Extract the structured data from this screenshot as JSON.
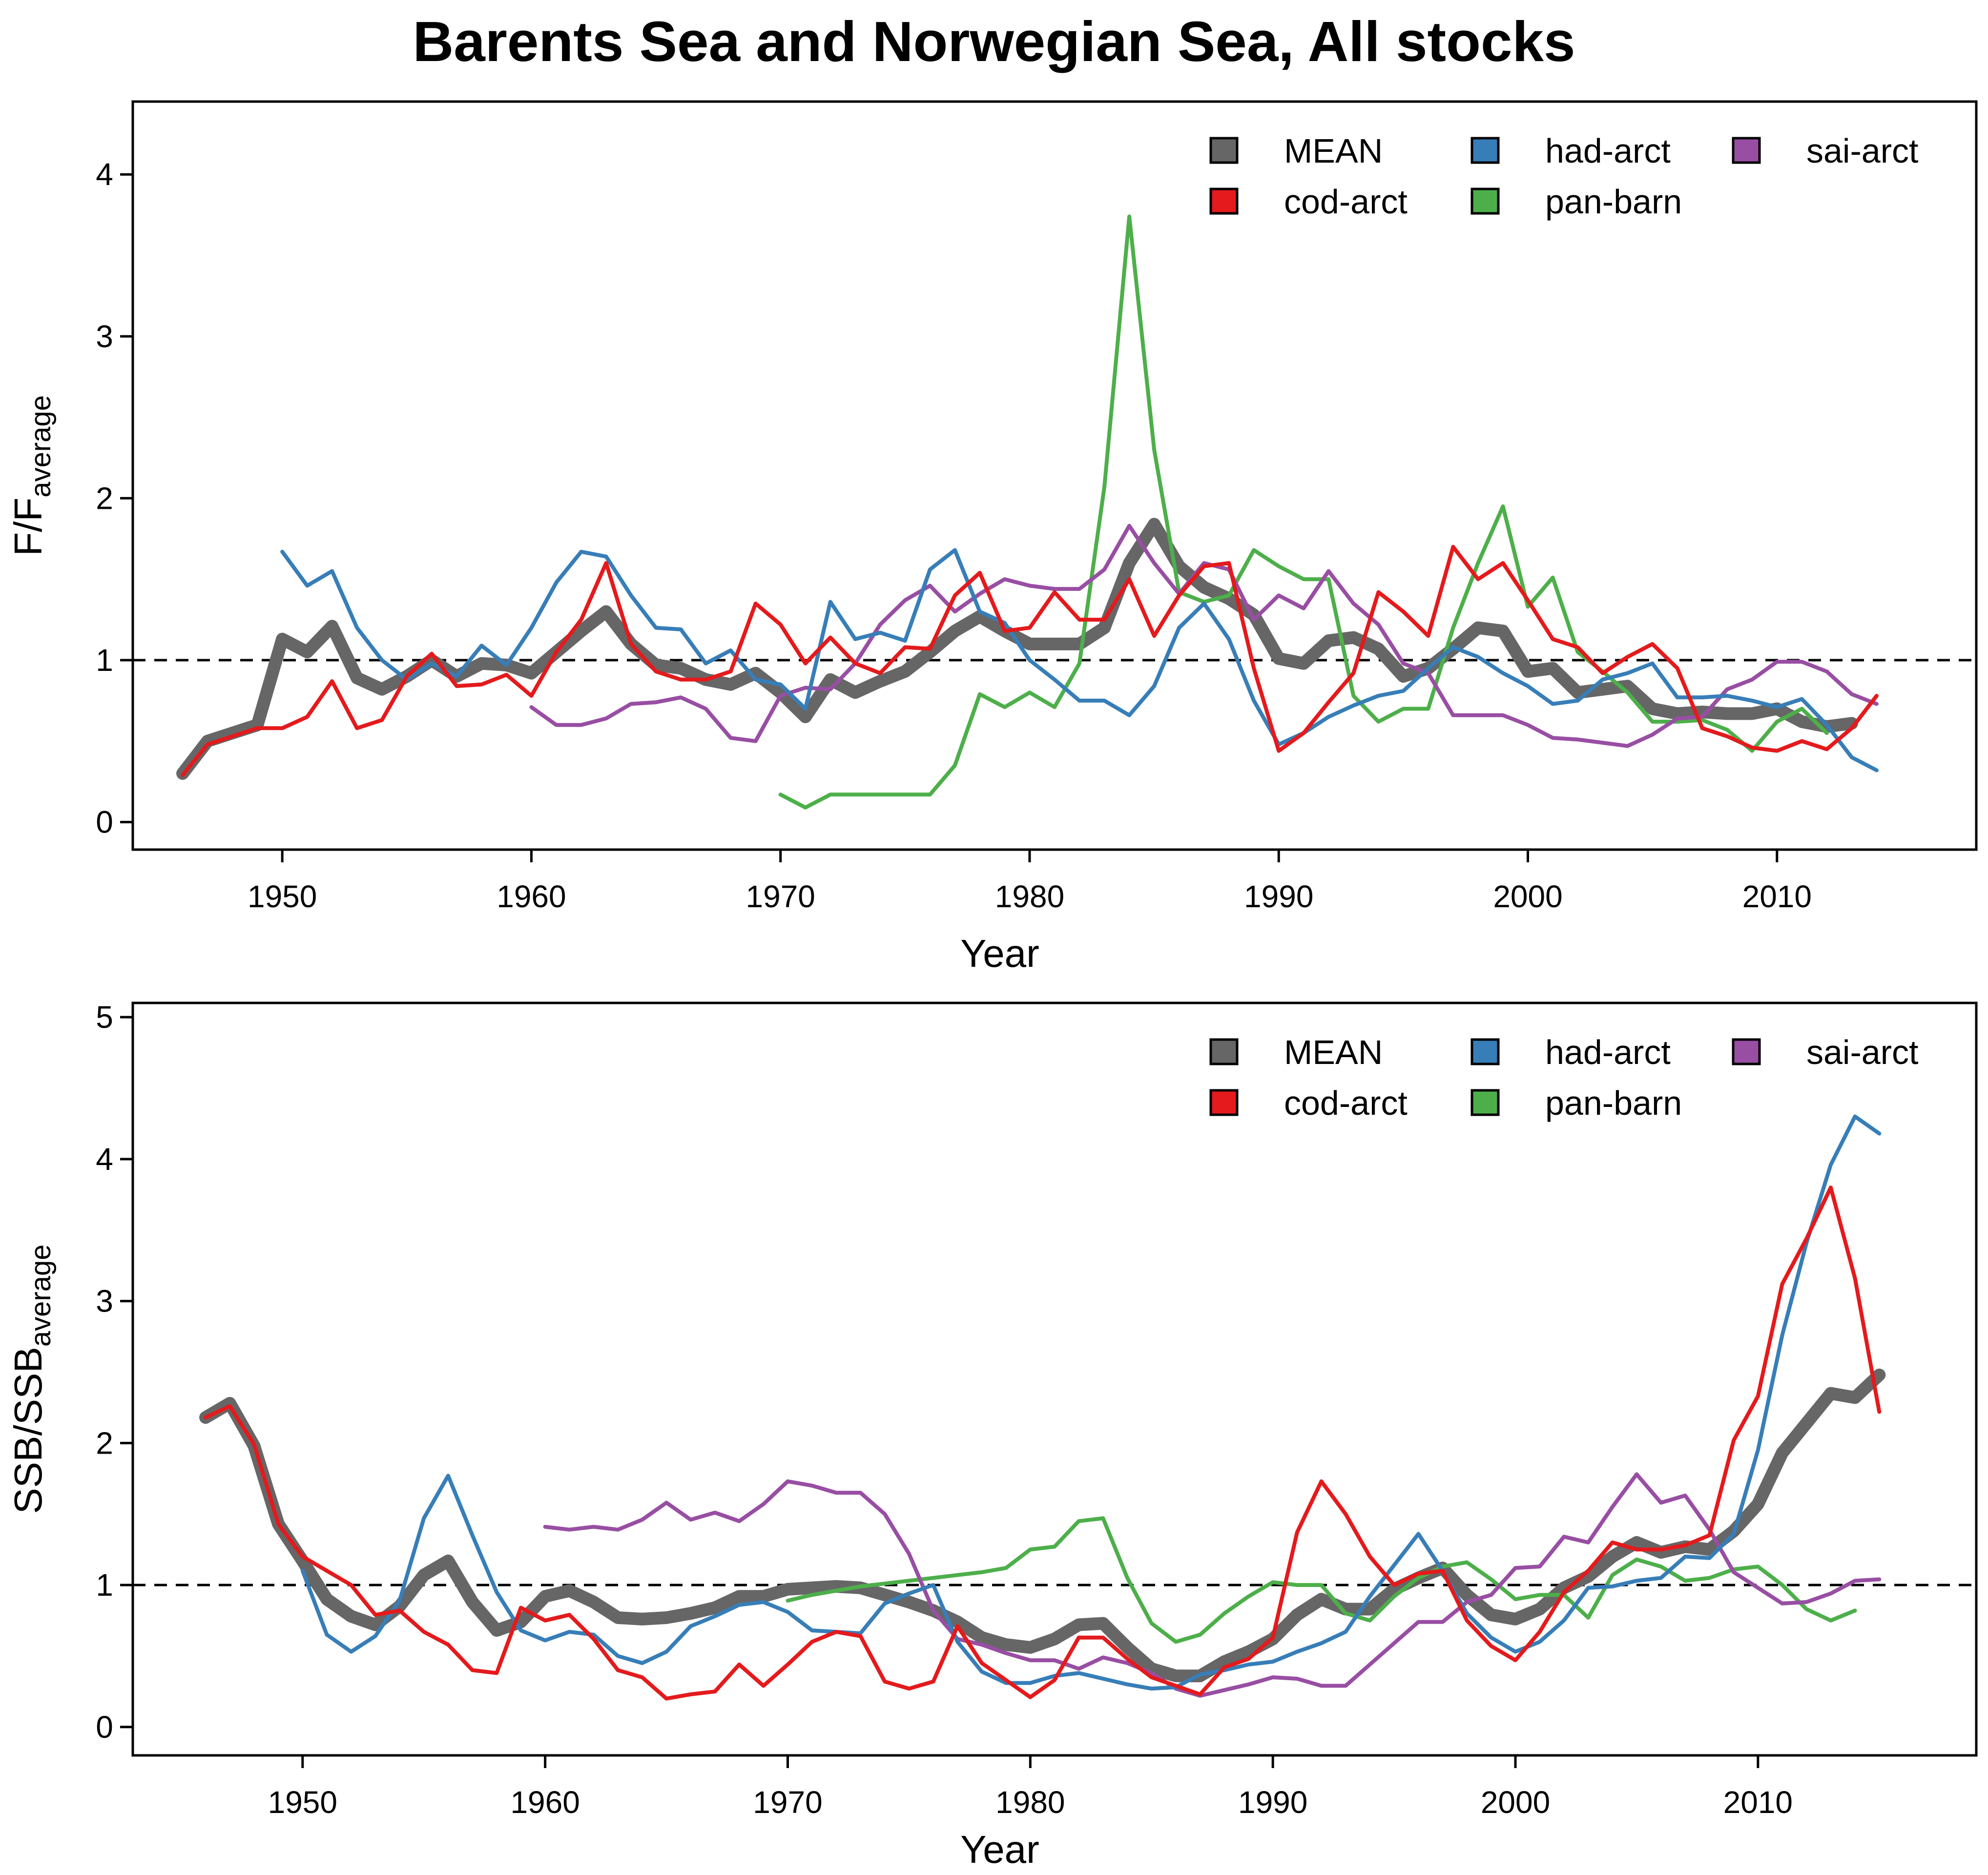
{
  "title": "Barents Sea and Norwegian Sea, All stocks",
  "colors": {
    "MEAN": "#666666",
    "cod-arct": "#e41a1c",
    "had-arct": "#377eb8",
    "pan-barn": "#4daf4a",
    "sai-arct": "#984ea3",
    "reference_line": "#000000"
  },
  "chart_data": [
    {
      "type": "line",
      "xlabel": "Year",
      "ylabel_main": "F/F",
      "ylabel_sub": "average",
      "xlim": [
        1944,
        2018
      ],
      "ylim": [
        -0.17,
        4.45
      ],
      "xticks": [
        1950,
        1960,
        1970,
        1980,
        1990,
        2000,
        2010
      ],
      "yticks": [
        0,
        1,
        2,
        3,
        4
      ],
      "reference_line": 1,
      "legend_position": "top-right",
      "legend": [
        "MEAN",
        "cod-arct",
        "had-arct",
        "pan-barn",
        "sai-arct"
      ],
      "series": [
        {
          "name": "MEAN",
          "start": 1946,
          "values": [
            0.3,
            0.5,
            0.55,
            0.6,
            1.13,
            1.05,
            1.21,
            0.89,
            0.82,
            0.9,
            1.0,
            0.9,
            0.98,
            0.97,
            0.92,
            1.05,
            1.18,
            1.3,
            1.1,
            0.97,
            0.95,
            0.88,
            0.85,
            0.92,
            0.8,
            0.65,
            0.88,
            0.8,
            0.87,
            0.93,
            1.05,
            1.18,
            1.27,
            1.18,
            1.1,
            1.1,
            1.1,
            1.2,
            1.6,
            1.84,
            1.58,
            1.45,
            1.38,
            1.28,
            1.01,
            0.98,
            1.12,
            1.14,
            1.07,
            0.9,
            0.95,
            1.07,
            1.2,
            1.18,
            0.93,
            0.95,
            0.8,
            0.82,
            0.84,
            0.7,
            0.67,
            0.68,
            0.67,
            0.67,
            0.7,
            0.62,
            0.59,
            0.61
          ]
        },
        {
          "name": "cod-arct",
          "start": 1946,
          "values": [
            0.29,
            0.48,
            0.53,
            0.58,
            0.58,
            0.65,
            0.87,
            0.58,
            0.63,
            0.9,
            1.04,
            0.84,
            0.85,
            0.91,
            0.78,
            1.05,
            1.25,
            1.6,
            1.1,
            0.93,
            0.88,
            0.88,
            0.93,
            1.35,
            1.22,
            0.98,
            1.14,
            0.98,
            0.92,
            1.08,
            1.07,
            1.4,
            1.54,
            1.18,
            1.2,
            1.42,
            1.25,
            1.25,
            1.5,
            1.15,
            1.4,
            1.58,
            1.6,
            0.95,
            0.44,
            0.55,
            0.74,
            0.92,
            1.42,
            1.3,
            1.15,
            1.7,
            1.5,
            1.6,
            1.37,
            1.13,
            1.08,
            0.92,
            1.02,
            1.1,
            0.95,
            0.58,
            0.53,
            0.46,
            0.44,
            0.5,
            0.45,
            0.58,
            0.78
          ]
        },
        {
          "name": "had-arct",
          "start": 1950,
          "values": [
            1.67,
            1.46,
            1.55,
            1.2,
            1.0,
            0.88,
            0.98,
            0.9,
            1.09,
            0.97,
            1.2,
            1.48,
            1.67,
            1.64,
            1.4,
            1.2,
            1.19,
            0.98,
            1.06,
            0.88,
            0.85,
            0.7,
            1.36,
            1.13,
            1.17,
            1.12,
            1.56,
            1.68,
            1.3,
            1.23,
            1.0,
            0.88,
            0.75,
            0.75,
            0.66,
            0.84,
            1.2,
            1.35,
            1.13,
            0.75,
            0.48,
            0.55,
            0.65,
            0.72,
            0.78,
            0.81,
            0.95,
            1.08,
            1.02,
            0.92,
            0.84,
            0.73,
            0.75,
            0.88,
            0.92,
            0.98,
            0.77,
            0.77,
            0.78,
            0.75,
            0.71,
            0.76,
            0.6,
            0.4,
            0.32
          ]
        },
        {
          "name": "pan-barn",
          "start": 1970,
          "values": [
            0.17,
            0.09,
            0.17,
            0.17,
            0.17,
            0.17,
            0.17,
            0.35,
            0.79,
            0.71,
            0.8,
            0.71,
            0.98,
            2.07,
            3.74,
            2.3,
            1.42,
            1.36,
            1.4,
            1.68,
            1.58,
            1.5,
            1.5,
            0.78,
            0.62,
            0.7,
            0.7,
            1.2,
            1.6,
            1.95,
            1.33,
            1.51,
            1.05,
            0.93,
            0.8,
            0.62,
            0.62,
            0.63,
            0.57,
            0.44,
            0.62,
            0.7,
            0.55
          ]
        },
        {
          "name": "sai-arct",
          "start": 1960,
          "values": [
            0.71,
            0.6,
            0.6,
            0.64,
            0.73,
            0.74,
            0.77,
            0.7,
            0.52,
            0.5,
            0.78,
            0.83,
            0.82,
            0.98,
            1.22,
            1.37,
            1.46,
            1.3,
            1.41,
            1.5,
            1.46,
            1.44,
            1.44,
            1.56,
            1.83,
            1.6,
            1.41,
            1.6,
            1.56,
            1.25,
            1.4,
            1.32,
            1.55,
            1.35,
            1.22,
            0.98,
            0.92,
            0.66,
            0.66,
            0.66,
            0.6,
            0.52,
            0.51,
            0.49,
            0.47,
            0.54,
            0.64,
            0.65,
            0.82,
            0.88,
            0.99,
            0.99,
            0.93,
            0.79,
            0.73
          ]
        }
      ]
    },
    {
      "type": "line",
      "xlabel": "Year",
      "ylabel_main": "SSB/SSB",
      "ylabel_sub": "average",
      "xlim": [
        1943,
        2019
      ],
      "ylim": [
        -0.2,
        5.1
      ],
      "xticks": [
        1950,
        1960,
        1970,
        1980,
        1990,
        2000,
        2010
      ],
      "yticks": [
        0,
        1,
        2,
        3,
        4,
        5
      ],
      "reference_line": 1,
      "legend_position": "top-right",
      "legend": [
        "MEAN",
        "cod-arct",
        "had-arct",
        "pan-barn",
        "sai-arct"
      ],
      "series": [
        {
          "name": "MEAN",
          "start": 1946,
          "values": [
            2.18,
            2.28,
            1.98,
            1.43,
            1.17,
            0.9,
            0.78,
            0.72,
            0.85,
            1.07,
            1.17,
            0.88,
            0.68,
            0.74,
            0.92,
            0.96,
            0.88,
            0.77,
            0.76,
            0.77,
            0.8,
            0.84,
            0.92,
            0.92,
            0.97,
            0.98,
            0.99,
            0.98,
            0.93,
            0.88,
            0.82,
            0.74,
            0.63,
            0.58,
            0.56,
            0.62,
            0.72,
            0.73,
            0.56,
            0.41,
            0.36,
            0.36,
            0.46,
            0.53,
            0.62,
            0.79,
            0.9,
            0.83,
            0.83,
            0.97,
            1.05,
            1.12,
            0.93,
            0.79,
            0.76,
            0.83,
            0.98,
            1.06,
            1.2,
            1.3,
            1.23,
            1.27,
            1.25,
            1.38,
            1.57,
            1.93,
            2.14,
            2.35,
            2.32,
            2.48
          ]
        },
        {
          "name": "cod-arct",
          "start": 1946,
          "values": [
            2.18,
            2.26,
            1.99,
            1.43,
            1.2,
            1.1,
            1.0,
            0.79,
            0.82,
            0.67,
            0.58,
            0.4,
            0.38,
            0.84,
            0.75,
            0.79,
            0.62,
            0.4,
            0.35,
            0.2,
            0.23,
            0.25,
            0.44,
            0.29,
            0.44,
            0.6,
            0.67,
            0.64,
            0.32,
            0.27,
            0.32,
            0.71,
            0.45,
            0.33,
            0.21,
            0.33,
            0.63,
            0.63,
            0.48,
            0.35,
            0.29,
            0.23,
            0.42,
            0.48,
            0.63,
            1.37,
            1.73,
            1.5,
            1.2,
            1.0,
            1.08,
            1.1,
            0.75,
            0.57,
            0.47,
            0.67,
            0.95,
            1.1,
            1.3,
            1.25,
            1.25,
            1.28,
            1.35,
            2.02,
            2.33,
            3.12,
            3.44,
            3.8,
            3.16,
            2.22
          ]
        },
        {
          "name": "had-arct",
          "start": 1950,
          "values": [
            1.1,
            0.65,
            0.53,
            0.64,
            0.89,
            1.47,
            1.77,
            1.35,
            0.95,
            0.68,
            0.61,
            0.67,
            0.65,
            0.5,
            0.45,
            0.53,
            0.71,
            0.78,
            0.86,
            0.88,
            0.81,
            0.68,
            0.67,
            0.66,
            0.87,
            0.94,
            1.0,
            0.6,
            0.39,
            0.31,
            0.31,
            0.36,
            0.38,
            0.34,
            0.3,
            0.27,
            0.28,
            0.37,
            0.4,
            0.44,
            0.46,
            0.53,
            0.59,
            0.67,
            0.92,
            1.14,
            1.36,
            1.1,
            0.8,
            0.63,
            0.53,
            0.6,
            0.75,
            0.98,
            0.99,
            1.03,
            1.05,
            1.2,
            1.19,
            1.36,
            1.95,
            2.76,
            3.41,
            3.96,
            4.3,
            4.18
          ]
        },
        {
          "name": "pan-barn",
          "start": 1970,
          "values": [
            0.89,
            0.93,
            0.96,
            0.99,
            1.01,
            1.03,
            1.05,
            1.07,
            1.09,
            1.12,
            1.25,
            1.27,
            1.45,
            1.47,
            1.05,
            0.73,
            0.6,
            0.65,
            0.8,
            0.92,
            1.02,
            1.0,
            1.0,
            0.8,
            0.75,
            0.92,
            1.05,
            1.13,
            1.16,
            1.04,
            0.9,
            0.93,
            0.93,
            0.77,
            1.07,
            1.18,
            1.13,
            1.03,
            1.05,
            1.11,
            1.13,
            1.0,
            0.83,
            0.75,
            0.82
          ]
        },
        {
          "name": "sai-arct",
          "start": 1960,
          "values": [
            1.41,
            1.39,
            1.41,
            1.39,
            1.46,
            1.58,
            1.46,
            1.51,
            1.45,
            1.57,
            1.73,
            1.7,
            1.65,
            1.65,
            1.5,
            1.22,
            0.82,
            0.62,
            0.58,
            0.52,
            0.47,
            0.47,
            0.41,
            0.49,
            0.45,
            0.38,
            0.27,
            0.22,
            0.26,
            0.3,
            0.35,
            0.34,
            0.29,
            0.29,
            0.44,
            0.59,
            0.74,
            0.74,
            0.88,
            0.93,
            1.12,
            1.13,
            1.34,
            1.3,
            1.55,
            1.78,
            1.58,
            1.63,
            1.39,
            1.09,
            0.98,
            0.87,
            0.88,
            0.94,
            1.03,
            1.04
          ]
        }
      ]
    }
  ]
}
